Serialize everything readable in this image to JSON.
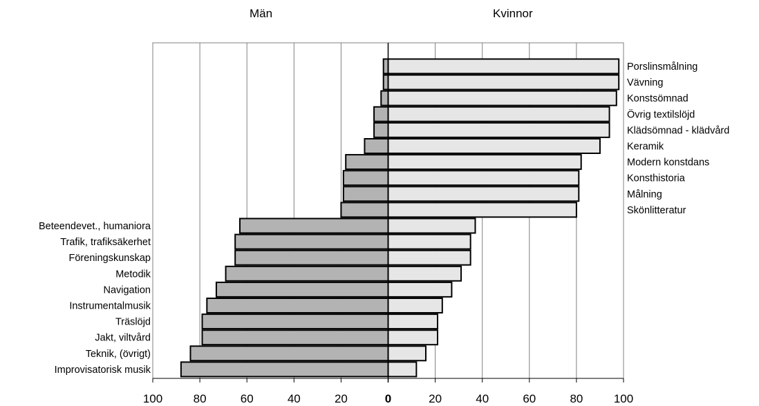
{
  "chart_data": {
    "type": "bar",
    "orientation": "horizontal-diverging",
    "left_header": "Män",
    "right_header": "Kvinnor",
    "categories": [
      "Porslinsmålning",
      "Vävning",
      "Konstsömnad",
      "Övrig textilslöjd",
      "Klädsömnad - klädvård",
      "Keramik",
      "Modern konstdans",
      "Konsthistoria",
      "Målning",
      "Skönlitteratur",
      "Beteendevet., humaniora",
      "Trafik, trafiksäkerhet",
      "Föreningskunskap",
      "Metodik",
      "Navigation",
      "Instrumentalmusik",
      "Träslöjd",
      "Jakt, viltvård",
      "Teknik, (övrigt)",
      "Improvisatorisk musik"
    ],
    "series": [
      {
        "name": "Män",
        "color": "#b3b3b3",
        "values": [
          2,
          2,
          3,
          6,
          6,
          10,
          18,
          19,
          19,
          20,
          63,
          65,
          65,
          69,
          73,
          77,
          79,
          79,
          84,
          88
        ]
      },
      {
        "name": "Kvinnor",
        "color": "#e6e6e6",
        "values": [
          98,
          98,
          97,
          94,
          94,
          90,
          82,
          81,
          81,
          80,
          37,
          35,
          35,
          31,
          27,
          23,
          21,
          21,
          16,
          12
        ]
      }
    ],
    "label_side": [
      "right",
      "right",
      "right",
      "right",
      "right",
      "right",
      "right",
      "right",
      "right",
      "right",
      "left",
      "left",
      "left",
      "left",
      "left",
      "left",
      "left",
      "left",
      "left",
      "left"
    ],
    "xticks": [
      "100",
      "80",
      "60",
      "40",
      "20",
      "0",
      "20",
      "40",
      "60",
      "80",
      "100"
    ],
    "xlim": [
      -100,
      100
    ],
    "grid": true
  }
}
